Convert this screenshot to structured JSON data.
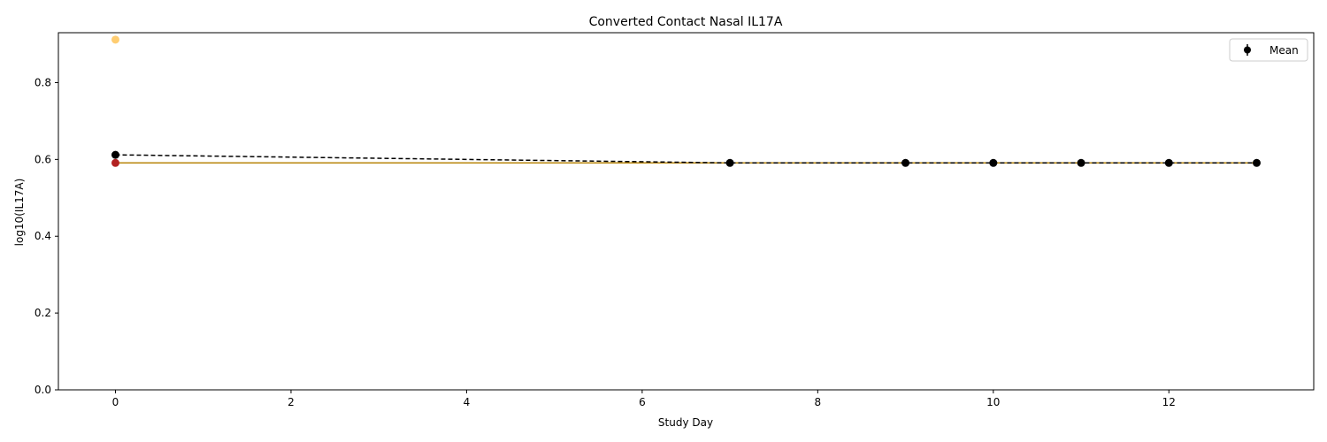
{
  "chart_data": {
    "type": "line",
    "title": "Converted Contact Nasal IL17A",
    "xlabel": "Study Day",
    "ylabel": "log10(IL17A)",
    "xlim": [
      -0.65,
      13.65
    ],
    "ylim": [
      0.0,
      0.93
    ],
    "xticks": [
      0,
      2,
      4,
      6,
      8,
      10,
      12
    ],
    "yticks": [
      0.0,
      0.2,
      0.4,
      0.6,
      0.8
    ],
    "xtick_labels": [
      "0",
      "2",
      "4",
      "6",
      "8",
      "10",
      "12"
    ],
    "ytick_labels": [
      "0.0",
      "0.2",
      "0.4",
      "0.6",
      "0.8"
    ],
    "grid": false,
    "legend": {
      "placement": "top-right",
      "entries": [
        "Mean"
      ]
    },
    "series": [
      {
        "name": "Mean",
        "color": "#000000",
        "style": "dashed-with-markers",
        "x": [
          0,
          7,
          9,
          10,
          11,
          12,
          13
        ],
        "y": [
          0.612,
          0.591,
          0.591,
          0.591,
          0.591,
          0.591,
          0.591
        ]
      },
      {
        "color": "#b8860b",
        "style": "solid-line",
        "x": [
          0,
          13
        ],
        "y": [
          0.591,
          0.591
        ]
      },
      {
        "color": "#ffc04d",
        "style": "points",
        "x": [
          0
        ],
        "y": [
          0.912
        ]
      },
      {
        "color": "#b22222",
        "style": "points",
        "x": [
          0
        ],
        "y": [
          0.591
        ]
      }
    ]
  }
}
